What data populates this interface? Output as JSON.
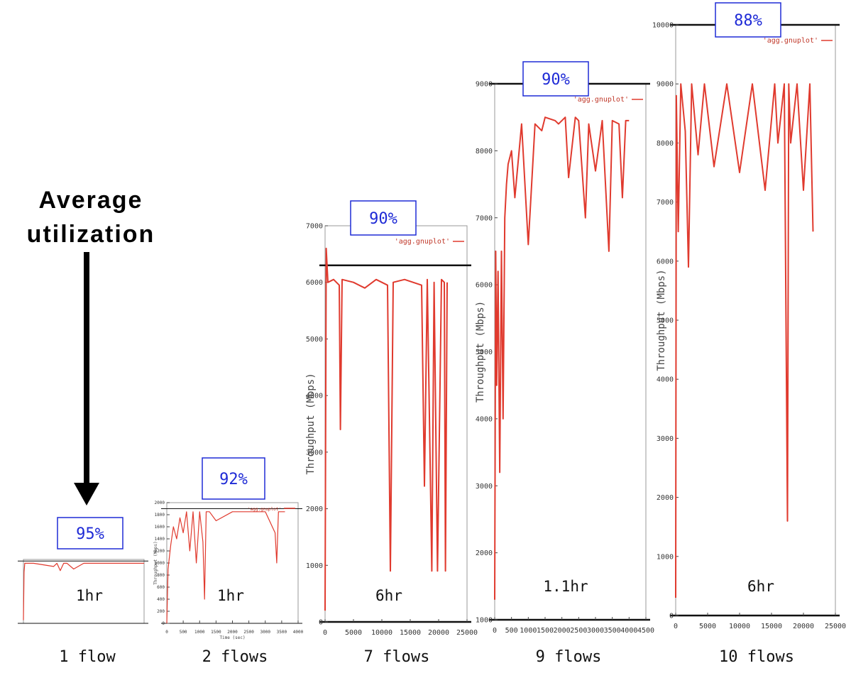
{
  "heading": {
    "line1": "Average",
    "line2": "utilization"
  },
  "chart_data": [
    {
      "type": "line",
      "title": "",
      "flows_label": "1 flow",
      "duration_label": "1hr",
      "utilization_label": "95%",
      "xlabel": "",
      "ylabel": "",
      "xlim": [
        0,
        3600
      ],
      "ylim": [
        0,
        2000
      ],
      "capacity": 1950,
      "x_ticks": [],
      "y_ticks": [],
      "series": [
        {
          "x": [
            0,
            20,
            40,
            300,
            900,
            1000,
            1100,
            1200,
            1300,
            1500,
            1800,
            2000,
            3400,
            3600
          ],
          "values": [
            100,
            1600,
            1880,
            1880,
            1780,
            1880,
            1650,
            1880,
            1880,
            1700,
            1880,
            1880,
            1880,
            1880
          ]
        }
      ],
      "color": "#e03a2e"
    },
    {
      "type": "line",
      "title": "",
      "flows_label": "2 flows",
      "duration_label": "1hr",
      "utilization_label": "92%",
      "xlabel": "Time (sec)",
      "ylabel": "Throughput (Mbps)",
      "legend": "'agg.gnuplot'",
      "xlim": [
        0,
        4000
      ],
      "ylim": [
        0,
        2000
      ],
      "capacity": 1900,
      "x_ticks": [
        0,
        500,
        1000,
        1500,
        2000,
        2500,
        3000,
        3500,
        4000
      ],
      "y_ticks": [
        0,
        200,
        400,
        600,
        800,
        1000,
        1200,
        1400,
        1600,
        1800,
        2000
      ],
      "series": [
        {
          "x": [
            0,
            40,
            80,
            120,
            200,
            300,
            400,
            500,
            600,
            700,
            800,
            900,
            1000,
            1100,
            1150,
            1200,
            1300,
            1500,
            2000,
            2500,
            3000,
            3300,
            3350,
            3400,
            3500,
            3600
          ],
          "values": [
            0,
            900,
            1100,
            1300,
            1600,
            1400,
            1750,
            1500,
            1850,
            1200,
            1850,
            1000,
            1850,
            1350,
            400,
            1850,
            1850,
            1700,
            1850,
            1850,
            1850,
            1500,
            1000,
            1850,
            1850,
            1850
          ]
        }
      ],
      "color": "#e03a2e"
    },
    {
      "type": "line",
      "title": "",
      "flows_label": "7 flows",
      "duration_label": "6hr",
      "utilization_label": "90%",
      "xlabel": "",
      "ylabel": "Throughput (Mbps)",
      "legend": "'agg.gnuplot'",
      "xlim": [
        0,
        25000
      ],
      "ylim": [
        0,
        7000
      ],
      "capacity": 6300,
      "x_ticks": [
        0,
        5000,
        10000,
        15000,
        20000,
        25000
      ],
      "y_ticks": [
        0,
        1000,
        2000,
        3000,
        4000,
        5000,
        6000,
        7000
      ],
      "series": [
        {
          "x": [
            0,
            200,
            500,
            1500,
            2500,
            2700,
            3000,
            5000,
            7000,
            9000,
            11000,
            11500,
            12000,
            14000,
            17000,
            17500,
            18000,
            18800,
            19200,
            19800,
            20500,
            21000,
            21200,
            21500
          ],
          "values": [
            200,
            6600,
            6000,
            6050,
            5950,
            3400,
            6050,
            6000,
            5900,
            6050,
            5950,
            900,
            6000,
            6050,
            5950,
            2400,
            6050,
            900,
            6000,
            900,
            6050,
            6000,
            900,
            6000
          ]
        }
      ],
      "color": "#e03a2e"
    },
    {
      "type": "line",
      "title": "",
      "flows_label": "9 flows",
      "duration_label": "1.1hr",
      "utilization_label": "90%",
      "xlabel": "",
      "ylabel": "Throughput (Mbps)",
      "legend": "'agg.gnuplot'",
      "xlim": [
        0,
        4500
      ],
      "ylim": [
        1000,
        9000
      ],
      "capacity": 9000,
      "x_ticks": [
        0,
        500,
        1000,
        1500,
        2000,
        2500,
        3000,
        3500,
        4000,
        4500
      ],
      "y_ticks": [
        1000,
        2000,
        3000,
        4000,
        5000,
        6000,
        7000,
        8000,
        9000
      ],
      "series": [
        {
          "x": [
            0,
            30,
            60,
            100,
            150,
            200,
            250,
            300,
            350,
            400,
            500,
            600,
            800,
            1000,
            1200,
            1400,
            1500,
            1800,
            1900,
            2100,
            2200,
            2400,
            2500,
            2700,
            2800,
            3000,
            3200,
            3400,
            3500,
            3700,
            3800,
            3900,
            4000
          ],
          "values": [
            1300,
            6500,
            4500,
            6200,
            3200,
            6500,
            4000,
            7000,
            7500,
            7800,
            8000,
            7300,
            8400,
            6600,
            8400,
            8300,
            8500,
            8450,
            8400,
            8500,
            7600,
            8500,
            8450,
            7000,
            8400,
            7700,
            8450,
            6500,
            8450,
            8400,
            7300,
            8450,
            8450
          ]
        }
      ],
      "color": "#e03a2e"
    },
    {
      "type": "line",
      "title": "",
      "flows_label": "10 flows",
      "duration_label": "6hr",
      "utilization_label": "88%",
      "xlabel": "",
      "ylabel": "Throughput (Mbps)",
      "legend": "'agg.gnuplot'",
      "xlim": [
        0,
        25000
      ],
      "ylim": [
        0,
        10000
      ],
      "capacity": 10000,
      "x_ticks": [
        0,
        5000,
        10000,
        15000,
        20000,
        25000
      ],
      "y_ticks": [
        0,
        1000,
        2000,
        3000,
        4000,
        5000,
        6000,
        7000,
        8000,
        9000,
        10000
      ],
      "series": [
        {
          "x": [
            0,
            100,
            400,
            800,
            1500,
            2000,
            2500,
            3500,
            4500,
            6000,
            8000,
            10000,
            12000,
            14000,
            15500,
            16000,
            17000,
            17500,
            17700,
            18000,
            19000,
            20000,
            21000,
            21500
          ],
          "values": [
            300,
            8800,
            6500,
            9000,
            8200,
            5900,
            9000,
            7800,
            9000,
            7600,
            9000,
            7500,
            9000,
            7200,
            9000,
            8000,
            9000,
            1600,
            9000,
            8000,
            9000,
            7200,
            9000,
            6500
          ]
        }
      ],
      "color": "#e03a2e"
    }
  ]
}
